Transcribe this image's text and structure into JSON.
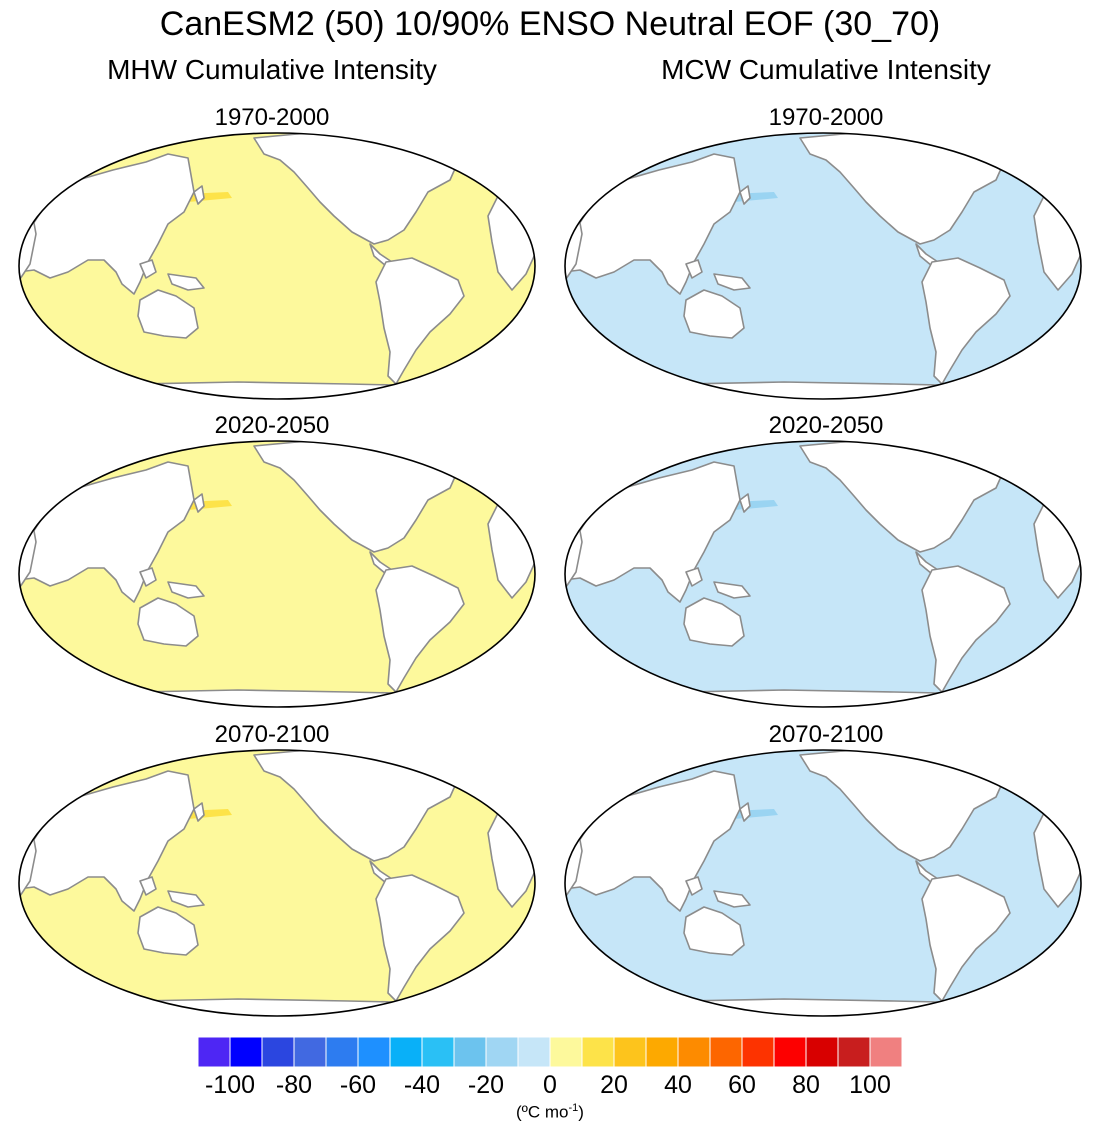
{
  "title": "CanESM2 (50) 10/90% ENSO Neutral EOF (30_70)",
  "columns": [
    {
      "label": "MHW Cumulative Intensity",
      "ocean_color": "#fdf99c",
      "hot_color": "#fde349"
    },
    {
      "label": "MCW Cumulative Intensity",
      "ocean_color": "#c6e6f8",
      "hot_color": "#9ad4f2"
    }
  ],
  "periods": [
    "1970-2000",
    "2020-2050",
    "2070-2100"
  ],
  "colorbar": {
    "colors": [
      "#4e26f4",
      "#0000ff",
      "#2b46e0",
      "#4169e1",
      "#2d7cf0",
      "#1e90ff",
      "#09b0f8",
      "#2ac0f5",
      "#6cc3ee",
      "#a0d6f3",
      "#c6e6f8",
      "#fdf99c",
      "#fde349",
      "#fdc41c",
      "#fda900",
      "#fd8b00",
      "#fd6600",
      "#fd3300",
      "#fd0000",
      "#d80000",
      "#c81e1e",
      "#f08080"
    ],
    "ticks": [
      "-100",
      "-80",
      "-60",
      "-40",
      "-20",
      "0",
      "20",
      "40",
      "60",
      "80",
      "100"
    ],
    "units_main": "(ºC mo",
    "units_sup": "-1",
    "units_end": ")"
  }
}
